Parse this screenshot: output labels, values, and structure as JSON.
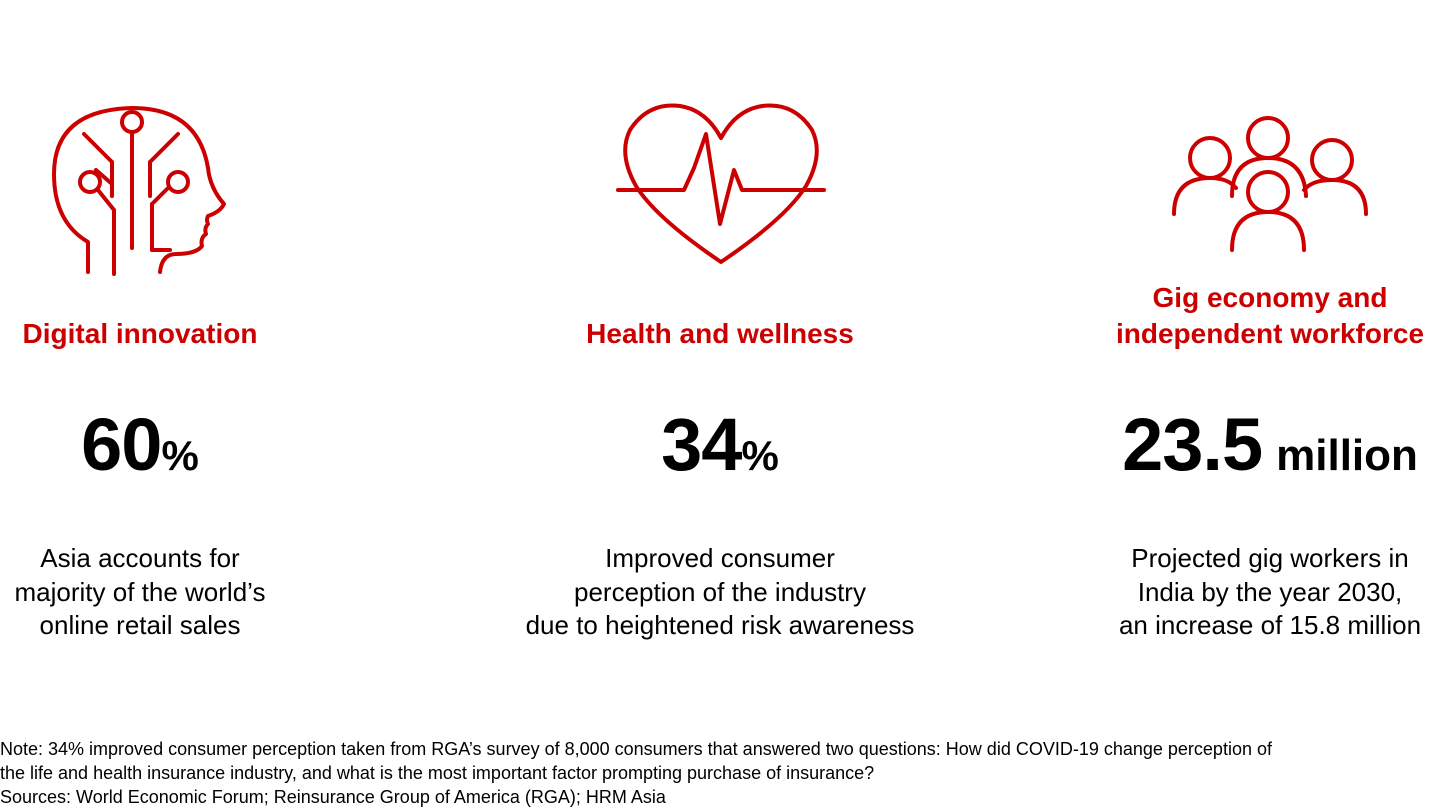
{
  "accent_color": "#cc0000",
  "columns": [
    {
      "icon": "ai-head-icon",
      "title_lines": [
        "Digital innovation"
      ],
      "stat_value": "60",
      "stat_unit": "%",
      "description_lines": [
        "Asia accounts for",
        "majority of the world’s",
        "online retail sales"
      ]
    },
    {
      "icon": "heart-pulse-icon",
      "title_lines": [
        "Health and wellness"
      ],
      "stat_value": "34",
      "stat_unit": "%",
      "description_lines": [
        "Improved consumer",
        "perception of the industry",
        "due to heightened risk awareness"
      ]
    },
    {
      "icon": "people-group-icon",
      "title_lines": [
        "Gig economy and",
        "independent workforce"
      ],
      "stat_value": "23.5",
      "stat_unit": "million",
      "description_lines": [
        "Projected gig workers in",
        "India by the year 2030,",
        "an increase of 15.8 million"
      ]
    }
  ],
  "footer": {
    "note_lines": [
      "Note: 34% improved consumer perception taken from RGA’s survey of 8,000 consumers that answered two questions: How did COVID-19 change perception of",
      "the life and health insurance industry, and what is the most important factor prompting purchase of insurance?"
    ],
    "sources": "Sources: World Economic Forum; Reinsurance Group of America (RGA); HRM Asia"
  }
}
